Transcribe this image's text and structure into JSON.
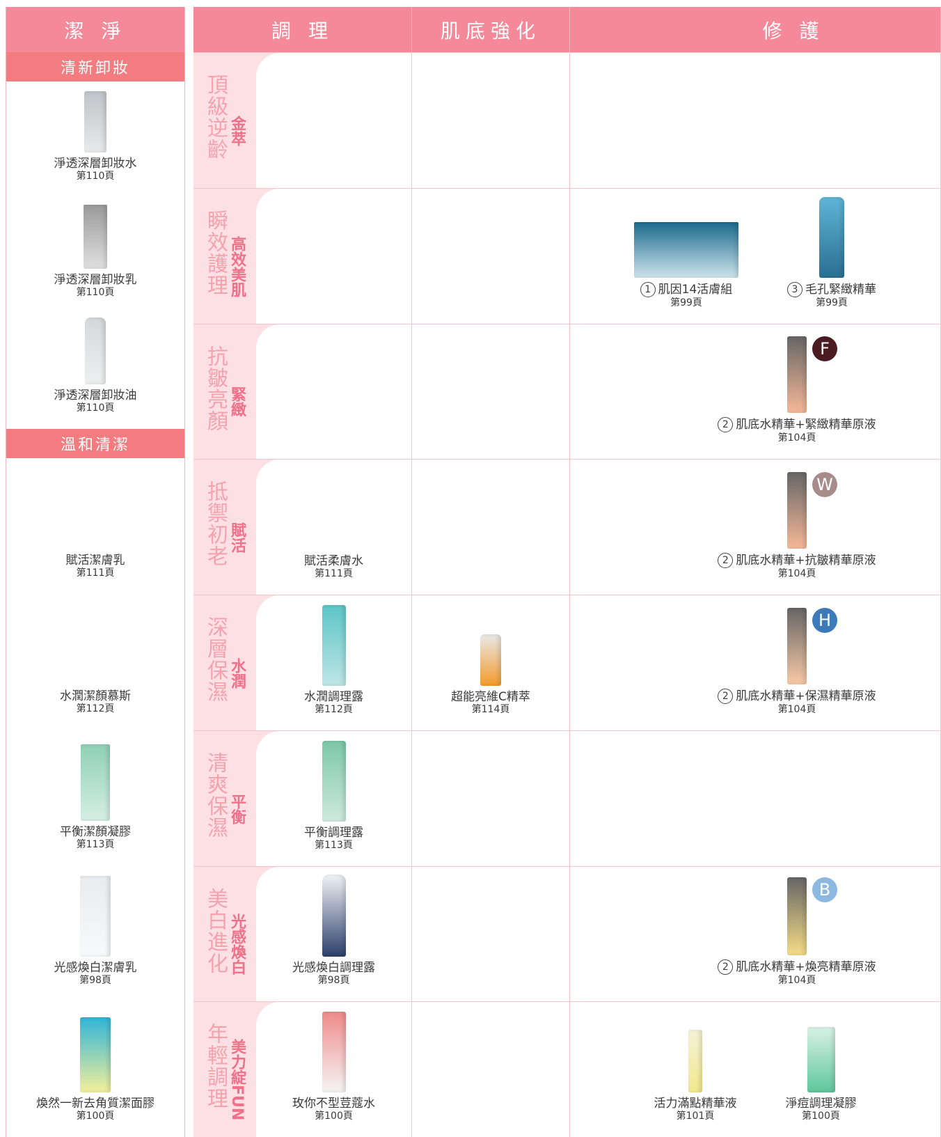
{
  "cleanse": {
    "title": "潔 淨",
    "groups": [
      {
        "title": "清新卸妝",
        "products": [
          {
            "name": "淨透深層卸妝水",
            "page": "第110頁"
          },
          {
            "name": "淨透深層卸妝乳",
            "page": "第110頁"
          },
          {
            "name": "淨透深層卸妝油",
            "page": "第110頁"
          }
        ]
      },
      {
        "title": "溫和清潔",
        "products": [
          {
            "name": "賦活潔膚乳",
            "page": "第111頁"
          },
          {
            "name": "水潤潔顏慕斯",
            "page": "第112頁"
          },
          {
            "name": "平衡潔顏凝膠",
            "page": "第113頁"
          },
          {
            "name": "光感煥白潔膚乳",
            "page": "第98頁"
          },
          {
            "name": "煥然一新去角質潔面膠",
            "page": "第100頁"
          }
        ]
      }
    ]
  },
  "care": {
    "columns": [
      "調 理",
      "肌底強化",
      "修 護"
    ],
    "rows": [
      {
        "label": "頂級逆齡",
        "sub": "金萃"
      },
      {
        "label": "瞬效護理",
        "sub": "高效美肌",
        "repair": [
          {
            "num": "1",
            "name": "肌因14活膚組",
            "page": "第99頁"
          },
          {
            "num": "3",
            "name": "毛孔緊緻精華",
            "page": "第99頁"
          }
        ]
      },
      {
        "label": "抗皺亮顏",
        "sub": "緊緻",
        "repair": [
          {
            "num": "2",
            "name": "肌底水精華+緊緻精華原液",
            "page": "第104頁",
            "badge": "F",
            "badge_color": "#4a1c22"
          }
        ]
      },
      {
        "label": "抵禦初老",
        "sub": "賦活",
        "toner": [
          {
            "name": "賦活柔膚水",
            "page": "第111頁"
          }
        ],
        "repair": [
          {
            "num": "2",
            "name": "肌底水精華+抗皺精華原液",
            "page": "第104頁",
            "badge": "W",
            "badge_color": "#a88b8b"
          }
        ]
      },
      {
        "label": "深層保濕",
        "sub": "水潤",
        "toner": [
          {
            "name": "水潤調理露",
            "page": "第112頁"
          }
        ],
        "booster": [
          {
            "name": "超能亮維C精萃",
            "page": "第114頁"
          }
        ],
        "repair": [
          {
            "num": "2",
            "name": "肌底水精華+保濕精華原液",
            "page": "第104頁",
            "badge": "H",
            "badge_color": "#3d7bb8"
          }
        ]
      },
      {
        "label": "清爽保濕",
        "sub": "平衡",
        "toner": [
          {
            "name": "平衡調理露",
            "page": "第113頁"
          }
        ]
      },
      {
        "label": "美白進化",
        "sub": "光感煥白",
        "toner": [
          {
            "name": "光感煥白調理露",
            "page": "第98頁"
          }
        ],
        "repair": [
          {
            "num": "2",
            "name": "肌底水精華+煥亮精華原液",
            "page": "第104頁",
            "badge": "B",
            "badge_color": "#8db8e0"
          }
        ]
      },
      {
        "label": "年輕調理",
        "sub": "美力綻FUN",
        "toner": [
          {
            "name": "玫你不型荳蔻水",
            "page": "第100頁"
          }
        ],
        "repair": [
          {
            "name": "活力滿點精華液",
            "page": "第101頁"
          },
          {
            "name": "淨痘調理凝膠",
            "page": "第100頁"
          }
        ]
      }
    ]
  }
}
